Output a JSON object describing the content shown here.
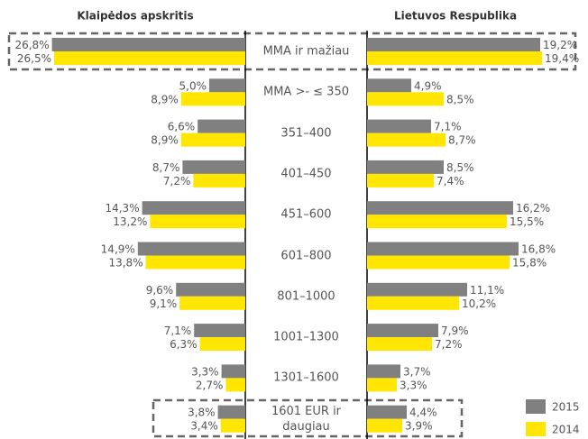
{
  "chart_data": {
    "type": "bar",
    "categories": [
      "MMA ir mažiau",
      "MMA >- ≤ 350",
      "351–400",
      "401–450",
      "451–600",
      "601–800",
      "801–1000",
      "1001–1300",
      "1301–1600",
      "1601 EUR ir daugiau"
    ],
    "panels": [
      {
        "title": "Klaipėdos apskritis",
        "direction": "left",
        "xlim": [
          0,
          30
        ],
        "series": [
          {
            "name": "2015",
            "color": "#808080",
            "values": [
              26.8,
              5.0,
              6.6,
              8.7,
              14.3,
              14.9,
              9.6,
              7.1,
              3.3,
              3.8
            ],
            "value_labels": [
              "26,8%",
              "5,0%",
              "6,6%",
              "8,7%",
              "14,3%",
              "14,9%",
              "9,6%",
              "7,1%",
              "3,3%",
              "3,8%"
            ]
          },
          {
            "name": "2014",
            "color": "#ffe600",
            "values": [
              26.5,
              8.9,
              8.9,
              7.2,
              13.2,
              13.8,
              9.1,
              6.3,
              2.7,
              3.4
            ],
            "value_labels": [
              "26,5%",
              "8,9%",
              "8,9%",
              "7,2%",
              "13,2%",
              "13,8%",
              "9,1%",
              "6,3%",
              "2,7%",
              "3,4%"
            ]
          }
        ]
      },
      {
        "title": "Lietuvos Respublika",
        "direction": "right",
        "xlim": [
          0,
          20
        ],
        "series": [
          {
            "name": "2015",
            "color": "#808080",
            "values": [
              19.2,
              4.9,
              7.1,
              8.5,
              16.2,
              16.8,
              11.1,
              7.9,
              3.7,
              4.4
            ],
            "value_labels": [
              "19,2%",
              "4,9%",
              "7,1%",
              "8,5%",
              "16,2%",
              "16,8%",
              "11,1%",
              "7,9%",
              "3,7%",
              "4,4%"
            ]
          },
          {
            "name": "2014",
            "color": "#ffe600",
            "values": [
              19.4,
              8.5,
              8.7,
              7.4,
              15.5,
              15.8,
              10.2,
              7.2,
              3.3,
              3.9
            ],
            "value_labels": [
              "19,4%",
              "8,5%",
              "8,7%",
              "7,4%",
              "15,5%",
              "15,8%",
              "10,2%",
              "7,2%",
              "3,3%",
              "3,9%"
            ]
          }
        ]
      }
    ],
    "legend": "bottom-right"
  }
}
